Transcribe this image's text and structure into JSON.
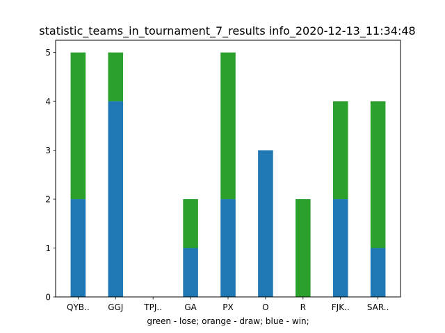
{
  "chart_data": {
    "type": "bar",
    "stacked": true,
    "title": "statistic_teams_in_tournament_7_results info_2020-12-13_11:34:48",
    "xlabel": "green - lose; orange - draw; blue - win;",
    "ylabel": "",
    "categories": [
      "QYB..",
      "GGJ",
      "TPJ..",
      "GA",
      "PX",
      "O",
      "R",
      "FJK..",
      "SAR.."
    ],
    "ylim": [
      0,
      5.25
    ],
    "yticks": [
      "0",
      "1",
      "2",
      "3",
      "4",
      "5"
    ],
    "grid": false,
    "series": [
      {
        "values": [
          2,
          4,
          0,
          1,
          2,
          3,
          0,
          2,
          1
        ],
        "color": "#1f77b4"
      },
      {
        "values": [
          0,
          0,
          0,
          0,
          0,
          0,
          0,
          0,
          0
        ],
        "color": "#ff7f0e"
      },
      {
        "values": [
          3,
          1,
          0,
          1,
          3,
          0,
          2,
          2,
          3
        ],
        "color": "#2ca02c"
      }
    ]
  }
}
